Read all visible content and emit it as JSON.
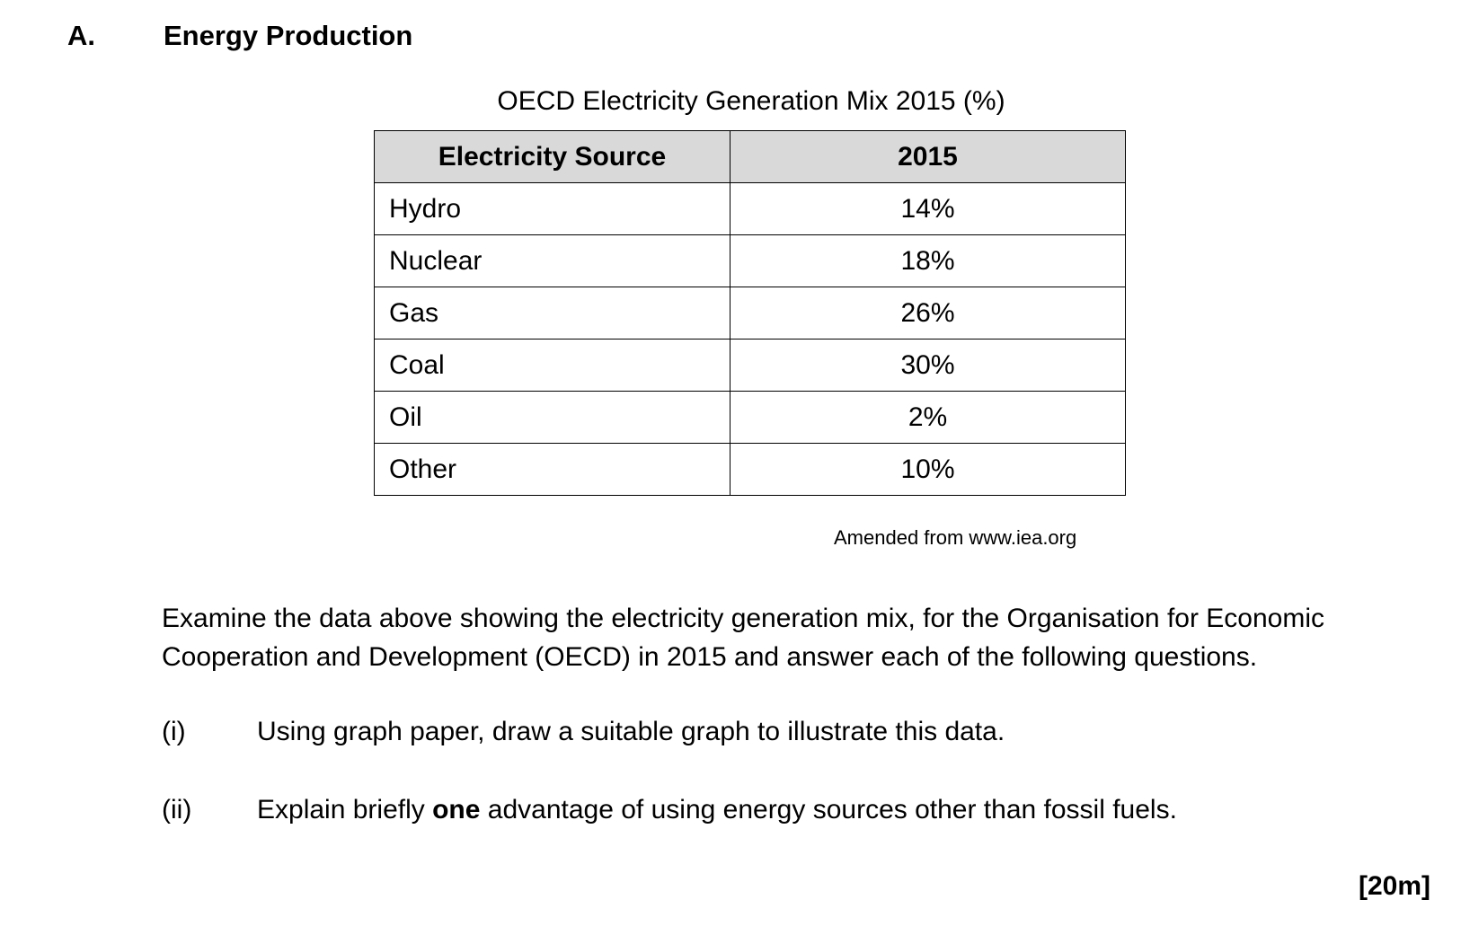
{
  "section": {
    "letter": "A.",
    "title": "Energy Production"
  },
  "table": {
    "title": "OECD Electricity Generation Mix 2015 (%)",
    "headers": [
      "Electricity Source",
      "2015"
    ],
    "rows": [
      {
        "source": "Hydro",
        "value": "14%"
      },
      {
        "source": "Nuclear",
        "value": "18%"
      },
      {
        "source": "Gas",
        "value": "26%"
      },
      {
        "source": "Coal",
        "value": "30%"
      },
      {
        "source": "Oil",
        "value": "2%"
      },
      {
        "source": "Other",
        "value": "10%"
      }
    ],
    "source_note": "Amended from www.iea.org"
  },
  "intro": "Examine the data above showing the electricity generation mix, for the Organisation for Economic Cooperation and Development (OECD) in 2015 and answer each of the following questions.",
  "questions": [
    {
      "number": "(i)",
      "text": "Using graph paper, draw a suitable graph to illustrate this data."
    },
    {
      "number": "(ii)",
      "text_before": "Explain briefly ",
      "text_bold": "one",
      "text_after": " advantage of using energy sources other than fossil fuels."
    }
  ],
  "marks": "[20m]"
}
